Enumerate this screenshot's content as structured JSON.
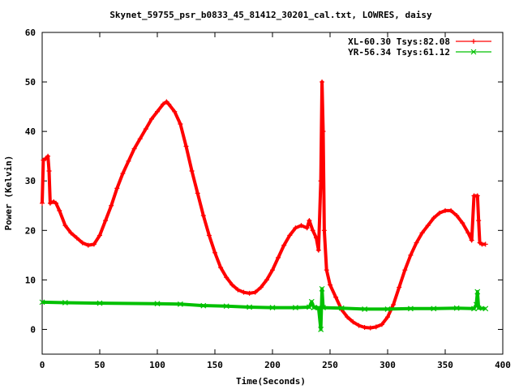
{
  "chart_data": {
    "type": "line",
    "title": "Skynet_59755_psr_b0833_45_81412_30201_cal.txt, LOWRES, daisy",
    "xlabel": "Time(Seconds)",
    "ylabel": "Power (Kelvin)",
    "xlim": [
      0,
      400
    ],
    "ylim": [
      -5,
      60
    ],
    "x_ticks": [
      0,
      50,
      100,
      150,
      200,
      250,
      300,
      350,
      400
    ],
    "y_ticks": [
      0,
      10,
      20,
      30,
      40,
      50,
      60
    ],
    "grid": false,
    "legend_position": "top-right",
    "series": [
      {
        "name": "XL-60.30 Tsys:82.08",
        "color": "#ff0000",
        "marker": "plus",
        "points": [
          [
            0,
            25.5
          ],
          [
            1,
            34.2
          ],
          [
            3,
            34.5
          ],
          [
            5,
            35
          ],
          [
            6,
            32
          ],
          [
            7,
            25.5
          ],
          [
            10,
            25.8
          ],
          [
            12,
            25.5
          ],
          [
            15,
            24
          ],
          [
            20,
            21
          ],
          [
            25,
            19.5
          ],
          [
            30,
            18.5
          ],
          [
            35,
            17.5
          ],
          [
            40,
            17
          ],
          [
            45,
            17.2
          ],
          [
            50,
            19
          ],
          [
            55,
            22
          ],
          [
            60,
            25
          ],
          [
            65,
            28.5
          ],
          [
            70,
            31.5
          ],
          [
            75,
            34
          ],
          [
            80,
            36.5
          ],
          [
            85,
            38.5
          ],
          [
            90,
            40.5
          ],
          [
            95,
            42.5
          ],
          [
            100,
            44
          ],
          [
            105,
            45.5
          ],
          [
            108,
            46
          ],
          [
            110,
            45.5
          ],
          [
            115,
            44
          ],
          [
            120,
            41.5
          ],
          [
            125,
            37
          ],
          [
            130,
            32
          ],
          [
            135,
            27.5
          ],
          [
            140,
            23
          ],
          [
            145,
            19
          ],
          [
            150,
            15.5
          ],
          [
            155,
            12.5
          ],
          [
            160,
            10.5
          ],
          [
            165,
            9
          ],
          [
            170,
            8
          ],
          [
            175,
            7.5
          ],
          [
            180,
            7.3
          ],
          [
            185,
            7.5
          ],
          [
            190,
            8.5
          ],
          [
            195,
            10
          ],
          [
            200,
            12
          ],
          [
            205,
            14.5
          ],
          [
            210,
            17
          ],
          [
            215,
            19
          ],
          [
            220,
            20.5
          ],
          [
            225,
            21
          ],
          [
            230,
            20.5
          ],
          [
            232,
            22
          ],
          [
            235,
            20
          ],
          [
            238,
            18.5
          ],
          [
            240,
            16
          ],
          [
            242,
            30
          ],
          [
            243,
            50
          ],
          [
            244,
            40
          ],
          [
            245,
            20
          ],
          [
            247,
            12
          ],
          [
            250,
            9
          ],
          [
            255,
            6.5
          ],
          [
            260,
            4
          ],
          [
            265,
            2.5
          ],
          [
            270,
            1.5
          ],
          [
            275,
            0.8
          ],
          [
            280,
            0.4
          ],
          [
            285,
            0.3
          ],
          [
            290,
            0.5
          ],
          [
            295,
            1
          ],
          [
            300,
            2.5
          ],
          [
            305,
            5
          ],
          [
            310,
            8.5
          ],
          [
            315,
            12
          ],
          [
            320,
            15
          ],
          [
            325,
            17.5
          ],
          [
            330,
            19.5
          ],
          [
            335,
            21
          ],
          [
            340,
            22.5
          ],
          [
            345,
            23.5
          ],
          [
            350,
            24
          ],
          [
            355,
            24
          ],
          [
            360,
            23
          ],
          [
            365,
            21.5
          ],
          [
            370,
            19.5
          ],
          [
            373,
            18
          ],
          [
            375,
            27
          ],
          [
            378,
            27
          ],
          [
            379,
            22
          ],
          [
            380,
            17.5
          ],
          [
            382,
            17.2
          ],
          [
            385,
            17.2
          ]
        ]
      },
      {
        "name": "YR-56.34 Tsys:61.12",
        "color": "#00c000",
        "marker": "cross",
        "points": [
          [
            0,
            5.5
          ],
          [
            20,
            5.4
          ],
          [
            50,
            5.3
          ],
          [
            100,
            5.2
          ],
          [
            120,
            5.1
          ],
          [
            140,
            4.8
          ],
          [
            160,
            4.7
          ],
          [
            180,
            4.5
          ],
          [
            200,
            4.4
          ],
          [
            220,
            4.4
          ],
          [
            232,
            4.5
          ],
          [
            234,
            5.6
          ],
          [
            236,
            4.4
          ],
          [
            240,
            4.4
          ],
          [
            242,
            0
          ],
          [
            243,
            8.2
          ],
          [
            244,
            4.4
          ],
          [
            260,
            4.3
          ],
          [
            280,
            4.1
          ],
          [
            300,
            4.1
          ],
          [
            320,
            4.2
          ],
          [
            340,
            4.2
          ],
          [
            360,
            4.3
          ],
          [
            375,
            4.2
          ],
          [
            377,
            5
          ],
          [
            378,
            7.6
          ],
          [
            379,
            4.3
          ],
          [
            385,
            4.2
          ]
        ]
      }
    ]
  }
}
